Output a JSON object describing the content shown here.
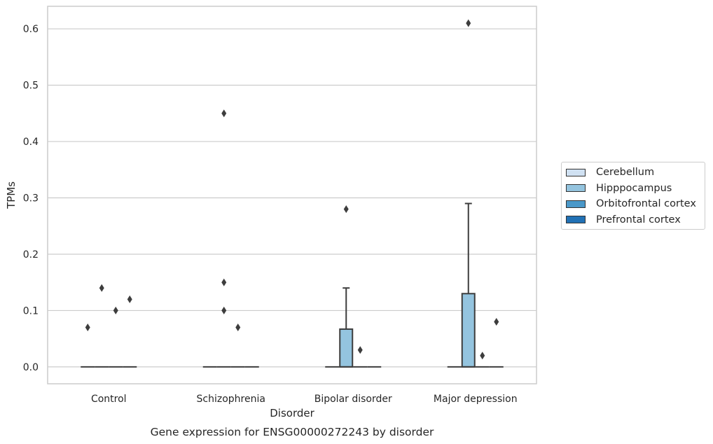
{
  "chart_data": {
    "type": "box",
    "title": "Gene expression for ENSG00000272243 by disorder",
    "xlabel": "Disorder",
    "ylabel": "TPMs",
    "ylim": [
      -0.03,
      0.64
    ],
    "yticks": [
      "0.0",
      "0.1",
      "0.2",
      "0.3",
      "0.4",
      "0.5",
      "0.6"
    ],
    "ytick_values": [
      0.0,
      0.1,
      0.2,
      0.3,
      0.4,
      0.5,
      0.6
    ],
    "grid": true,
    "legend_position": "center-right, outside plot",
    "categories": [
      "Control",
      "Schizophrenia",
      "Bipolar disorder",
      "Major depression"
    ],
    "series": [
      {
        "name": "Cerebellum",
        "color": "#d0e1f2",
        "boxes": [
          {
            "q1": 0,
            "median": 0,
            "q3": 0,
            "whisker_low": 0,
            "whisker_high": 0,
            "outliers": [
              0.07
            ]
          },
          {
            "q1": 0,
            "median": 0,
            "q3": 0,
            "whisker_low": 0,
            "whisker_high": 0,
            "outliers": []
          },
          {
            "q1": 0,
            "median": 0,
            "q3": 0,
            "whisker_low": 0,
            "whisker_high": 0,
            "outliers": []
          },
          {
            "q1": 0,
            "median": 0,
            "q3": 0,
            "whisker_low": 0,
            "whisker_high": 0,
            "outliers": []
          }
        ]
      },
      {
        "name": "Hipppocampus",
        "color": "#94c4df",
        "boxes": [
          {
            "q1": 0,
            "median": 0,
            "q3": 0,
            "whisker_low": 0,
            "whisker_high": 0,
            "outliers": [
              0.14
            ]
          },
          {
            "q1": 0,
            "median": 0,
            "q3": 0,
            "whisker_low": 0,
            "whisker_high": 0,
            "outliers": [
              0.45,
              0.15,
              0.1
            ]
          },
          {
            "q1": 0,
            "median": 0,
            "q3": 0.067,
            "whisker_low": 0,
            "whisker_high": 0.14,
            "outliers": [
              0.28
            ]
          },
          {
            "q1": 0,
            "median": 0,
            "q3": 0.13,
            "whisker_low": 0,
            "whisker_high": 0.29,
            "outliers": [
              0.61
            ]
          }
        ]
      },
      {
        "name": "Orbitofrontal cortex",
        "color": "#4a98c9",
        "boxes": [
          {
            "q1": 0,
            "median": 0,
            "q3": 0,
            "whisker_low": 0,
            "whisker_high": 0,
            "outliers": [
              0.1
            ]
          },
          {
            "q1": 0,
            "median": 0,
            "q3": 0,
            "whisker_low": 0,
            "whisker_high": 0,
            "outliers": [
              0.07
            ]
          },
          {
            "q1": 0,
            "median": 0,
            "q3": 0,
            "whisker_low": 0,
            "whisker_high": 0,
            "outliers": [
              0.03
            ]
          },
          {
            "q1": 0,
            "median": 0,
            "q3": 0,
            "whisker_low": 0,
            "whisker_high": 0,
            "outliers": [
              0.02
            ]
          }
        ]
      },
      {
        "name": "Prefrontal cortex",
        "color": "#2171b5",
        "boxes": [
          {
            "q1": 0,
            "median": 0,
            "q3": 0,
            "whisker_low": 0,
            "whisker_high": 0,
            "outliers": [
              0.12
            ]
          },
          {
            "q1": 0,
            "median": 0,
            "q3": 0,
            "whisker_low": 0,
            "whisker_high": 0,
            "outliers": []
          },
          {
            "q1": 0,
            "median": 0,
            "q3": 0,
            "whisker_low": 0,
            "whisker_high": 0,
            "outliers": []
          },
          {
            "q1": 0,
            "median": 0,
            "q3": 0,
            "whisker_low": 0,
            "whisker_high": 0,
            "outliers": [
              0.08
            ]
          }
        ]
      }
    ]
  }
}
